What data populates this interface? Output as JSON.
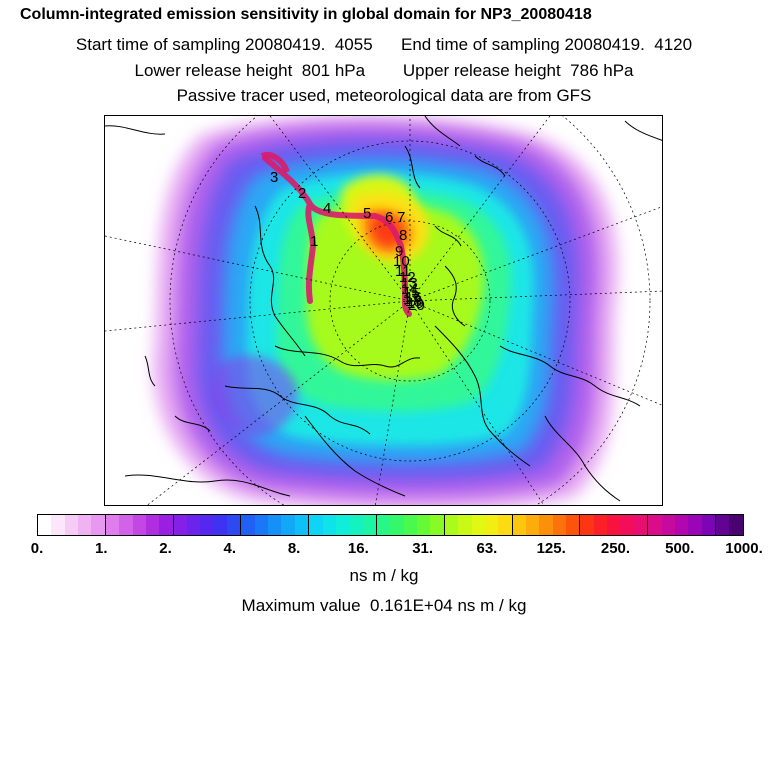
{
  "header": {
    "title": "Column-integrated emission sensitivity in global domain for NP3_20080418",
    "sampling": "Start time of sampling 20080419.  4055      End time of sampling 20080419.  4120",
    "heights": "Lower release height  801 hPa        Upper release height  786 hPa",
    "tracer": "Passive tracer used, meteorological data are from GFS"
  },
  "map": {
    "trajectory_labels": [
      "3",
      "2",
      "1",
      "4",
      "5",
      "6",
      "7",
      "8",
      "9",
      "10",
      "11",
      "12",
      "13",
      "14",
      "15",
      "16",
      "17",
      "18",
      "19",
      "20"
    ]
  },
  "colorbar": {
    "colors": [
      "#ffffff",
      "#fbe6fb",
      "#f6ccf7",
      "#f0b2f3",
      "#e898f0",
      "#de7deb",
      "#d262e8",
      "#c447e4",
      "#b02de0",
      "#9a1fe2",
      "#8420e8",
      "#6c24ec",
      "#5428f0",
      "#3e33f3",
      "#2d49f4",
      "#2160f5",
      "#1a78f6",
      "#1490f7",
      "#11a8f8",
      "#0fc0f8",
      "#0ed4f5",
      "#0ee3ea",
      "#10edd8",
      "#14f2c0",
      "#1bf5a4",
      "#26f787",
      "#34f86a",
      "#4af94e",
      "#66fa36",
      "#88fa24",
      "#aafa1c",
      "#c8fa16",
      "#e0f814",
      "#f2ee12",
      "#fadc10",
      "#fcc60e",
      "#fdac0c",
      "#fd900b",
      "#fd720a",
      "#fd540c",
      "#fc3615",
      "#fb1f28",
      "#f8123e",
      "#f20e58",
      "#e80e72",
      "#da0c8a",
      "#c8099e",
      "#b207ae",
      "#9a05b8",
      "#7e04b8",
      "#620394",
      "#4a0270"
    ],
    "tick_labels": [
      "0.",
      "1.",
      "2.",
      "4.",
      "8.",
      "16.",
      "31.",
      "63.",
      "125.",
      "250.",
      "500.",
      "1000."
    ],
    "units": "ns m / kg"
  },
  "footer": {
    "max_value": "Maximum value  0.161E+04 ns m / kg"
  }
}
